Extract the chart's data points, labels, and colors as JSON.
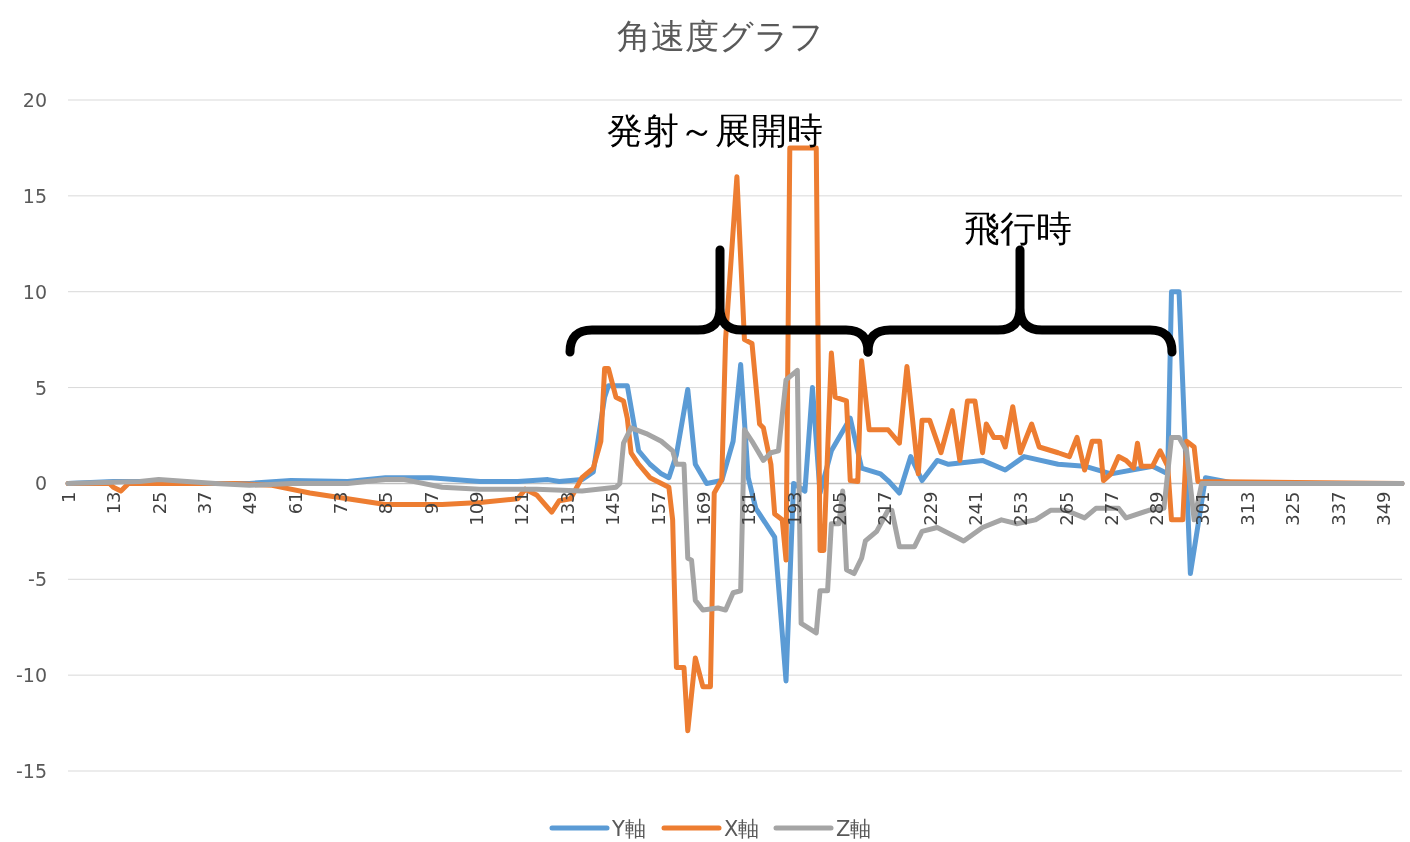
{
  "chart_data": {
    "type": "line",
    "title": "角速度グラフ",
    "xlim": [
      1,
      354
    ],
    "xticks": [
      1,
      13,
      25,
      37,
      49,
      61,
      73,
      85,
      97,
      109,
      121,
      133,
      145,
      157,
      169,
      181,
      193,
      205,
      217,
      229,
      241,
      253,
      265,
      277,
      289,
      301,
      313,
      325,
      337,
      349
    ],
    "ylim": [
      -15,
      20
    ],
    "yticks": [
      -15,
      -10,
      -5,
      0,
      5,
      10,
      15,
      20
    ],
    "grid": "y",
    "legend": "bottom",
    "marker": "none",
    "annotations": [
      "発射～展開時",
      "飛行時"
    ],
    "series": [
      {
        "name": "Y軸",
        "color": "#5b9bd5",
        "x": [
          1,
          13,
          20,
          35,
          49,
          60,
          75,
          85,
          97,
          110,
          120,
          128,
          131,
          137,
          140,
          143,
          144,
          149,
          152,
          155,
          158,
          160,
          162,
          165,
          167,
          170,
          174,
          177,
          179,
          181,
          183,
          188,
          191,
          193,
          196,
          198,
          200,
          203,
          208,
          211,
          216,
          218,
          221,
          224,
          227,
          231,
          234,
          243,
          249,
          254,
          263,
          270,
          277,
          288,
          292,
          293,
          295,
          298,
          302,
          310,
          354
        ],
        "values": [
          0,
          0.1,
          0.1,
          0,
          0,
          0.15,
          0.1,
          0.3,
          0.3,
          0.1,
          0.1,
          0.2,
          0.1,
          0.2,
          0.6,
          4.5,
          5.1,
          5.1,
          1.7,
          1.0,
          0.5,
          0.3,
          1.5,
          4.9,
          1.0,
          0,
          0.15,
          2.2,
          6.2,
          0.3,
          -1.3,
          -2.8,
          -10.3,
          0,
          -0.4,
          5.0,
          -0.5,
          1.7,
          3.4,
          0.8,
          0.5,
          0.15,
          -0.5,
          1.4,
          0.15,
          1.2,
          1.0,
          1.2,
          0.7,
          1.4,
          1.0,
          0.9,
          0.5,
          0.9,
          0.5,
          10,
          10,
          -4.7,
          0.3,
          0,
          0
        ]
      },
      {
        "name": "X軸",
        "color": "#ed7d31",
        "x": [
          1,
          12,
          13,
          15,
          17,
          45,
          55,
          65,
          75,
          85,
          100,
          110,
          120,
          122,
          125,
          129,
          131,
          134,
          137,
          140,
          142,
          143,
          144,
          146,
          148,
          149,
          150,
          152,
          155,
          160,
          161,
          162,
          164,
          165,
          167,
          169,
          171,
          172,
          174,
          175,
          178,
          180,
          182,
          184,
          185,
          187,
          188,
          190,
          191,
          192,
          199,
          200,
          201,
          203,
          204,
          207,
          208,
          210,
          211,
          213,
          218,
          221,
          223,
          226,
          227,
          229,
          232,
          235,
          237,
          239,
          241,
          243,
          244,
          246,
          248,
          249,
          251,
          253,
          256,
          258,
          263,
          266,
          268,
          270,
          272,
          274,
          275,
          277,
          279,
          281,
          283,
          284,
          285,
          288,
          290,
          292,
          293,
          296,
          297,
          299,
          300,
          354
        ],
        "values": [
          0,
          0,
          -0.2,
          -0.4,
          0,
          0,
          -0.1,
          -0.5,
          -0.8,
          -1.1,
          -1.1,
          -1.0,
          -0.8,
          -0.3,
          -0.6,
          -1.5,
          -0.9,
          -0.8,
          0.3,
          0.8,
          2.2,
          6.0,
          6.0,
          4.5,
          4.3,
          3.4,
          1.6,
          1.0,
          0.3,
          -0.2,
          -1.9,
          -9.6,
          -9.6,
          -12.9,
          -9.1,
          -10.6,
          -10.6,
          -0.5,
          0.2,
          7.5,
          16.0,
          7.5,
          7.3,
          3.1,
          2.9,
          1.0,
          -1.6,
          -1.9,
          -4.0,
          17.5,
          17.5,
          -3.5,
          -3.5,
          6.8,
          4.5,
          4.3,
          0.15,
          0.1,
          6.4,
          2.8,
          2.8,
          2.1,
          6.1,
          0.5,
          3.3,
          3.3,
          1.6,
          3.8,
          1.2,
          4.3,
          4.3,
          1.6,
          3.1,
          2.4,
          2.4,
          1.9,
          4.0,
          1.6,
          3.1,
          1.9,
          1.6,
          1.4,
          2.4,
          0.7,
          2.2,
          2.2,
          0.15,
          0.5,
          1.4,
          1.2,
          0.8,
          2.1,
          0.9,
          0.9,
          1.7,
          0.9,
          -1.9,
          -1.9,
          2.2,
          1.9,
          0.1,
          0
        ]
      },
      {
        "name": "Z軸",
        "color": "#a5a5a5",
        "x": [
          1,
          20,
          25,
          40,
          49,
          60,
          75,
          85,
          90,
          100,
          110,
          125,
          137,
          146,
          147,
          148,
          150,
          154,
          158,
          161,
          162,
          164,
          165,
          166,
          167,
          169,
          173,
          175,
          177,
          179,
          180,
          182,
          185,
          187,
          189,
          191,
          194,
          195,
          199,
          200,
          202,
          203,
          205,
          206,
          207,
          209,
          211,
          212,
          215,
          218,
          219,
          221,
          225,
          227,
          231,
          234,
          238,
          243,
          248,
          252,
          257,
          261,
          265,
          270,
          273,
          279,
          281,
          287,
          291,
          293,
          295,
          297,
          299,
          301,
          354
        ],
        "values": [
          0,
          0.1,
          0.2,
          0,
          -0.1,
          0,
          0,
          0.2,
          0.2,
          -0.2,
          -0.3,
          -0.3,
          -0.4,
          -0.2,
          0,
          2.1,
          2.9,
          2.6,
          2.2,
          1.7,
          1.0,
          1.0,
          -3.9,
          -4.0,
          -6.1,
          -6.6,
          -6.5,
          -6.6,
          -5.7,
          -5.6,
          2.8,
          2.2,
          1.2,
          1.6,
          1.7,
          5.4,
          5.9,
          -7.3,
          -7.8,
          -5.6,
          -5.6,
          -2.1,
          -2.1,
          -0.4,
          -4.5,
          -4.7,
          -3.9,
          -3.0,
          -2.5,
          -1.4,
          -1.4,
          -3.3,
          -3.3,
          -2.5,
          -2.3,
          -2.6,
          -3.0,
          -2.3,
          -1.9,
          -2.1,
          -1.9,
          -1.4,
          -1.4,
          -1.8,
          -1.3,
          -1.3,
          -1.8,
          -1.4,
          -1.3,
          2.4,
          2.4,
          1.7,
          -1.9,
          0,
          0
        ]
      }
    ]
  }
}
